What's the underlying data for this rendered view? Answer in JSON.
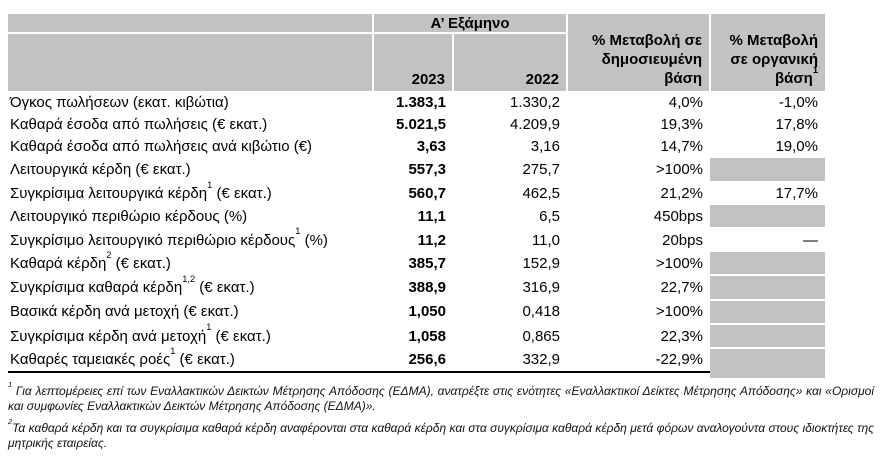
{
  "colors": {
    "header_bg": "#c2c2c2",
    "shaded_cell_bg": "#c2c2c2",
    "bottom_rule": "#000000",
    "cell_divider": "#ffffff"
  },
  "table": {
    "header": {
      "period_group": "Α’ Εξάμηνο",
      "col_2023": "2023",
      "col_2022": "2022",
      "col_published": "% Μεταβολή σε\nδημοσιευμένη\nβάση",
      "col_organic": "% Μεταβολή\nσε οργανική\nβάση[[1]]"
    },
    "rows": [
      {
        "label": "Όγκος πωλήσεων (εκατ. κιβώτια)",
        "y2023": "1.383,1",
        "y2022": "1.330,2",
        "published": "4,0%",
        "organic": "-1,0%",
        "organic_shaded": false
      },
      {
        "label": "Καθαρά έσοδα από πωλήσεις (€ εκατ.)",
        "y2023": "5.021,5",
        "y2022": "4.209,9",
        "published": "19,3%",
        "organic": "17,8%",
        "organic_shaded": false
      },
      {
        "label": "Καθαρά έσοδα από πωλήσεις ανά κιβώτιο (€)",
        "y2023": "3,63",
        "y2022": "3,16",
        "published": "14,7%",
        "organic": "19,0%",
        "organic_shaded": false
      },
      {
        "label": "Λειτουργικά κέρδη (€ εκατ.)",
        "y2023": "557,3",
        "y2022": "275,7",
        "published": ">100%",
        "organic": "",
        "organic_shaded": true
      },
      {
        "label": "Συγκρίσιμα λειτουργικά κέρδη[[1]] (€ εκατ.)",
        "y2023": "560,7",
        "y2022": "462,5",
        "published": "21,2%",
        "organic": "17,7%",
        "organic_shaded": false
      },
      {
        "label": "Λειτουργικό περιθώριο κέρδους (%)",
        "y2023": "11,1",
        "y2022": "6,5",
        "published": "450bps",
        "organic": "",
        "organic_shaded": true
      },
      {
        "label": "Συγκρίσιμο λειτουργικό περιθώριο κέρδους[[1]] (%)",
        "y2023": "11,2",
        "y2022": "11,0",
        "published": "20bps",
        "organic": "—",
        "organic_shaded": false
      },
      {
        "label": "Καθαρά κέρδη[[2]] (€ εκατ.)",
        "y2023": "385,7",
        "y2022": "152,9",
        "published": ">100%",
        "organic": "",
        "organic_shaded": true
      },
      {
        "label": "Συγκρίσιμα καθαρά κέρδη[[1,2]] (€ εκατ.)",
        "y2023": "388,9",
        "y2022": "316,9",
        "published": "22,7%",
        "organic": "",
        "organic_shaded": true
      },
      {
        "label": "Βασικά κέρδη ανά μετοχή (€ εκατ.)",
        "y2023": "1,050",
        "y2022": "0,418",
        "published": ">100%",
        "organic": "",
        "organic_shaded": true
      },
      {
        "label": "Συγκρίσιμα κέρδη ανά μετοχή[[1]] (€ εκατ.)",
        "y2023": "1,058",
        "y2022": "0,865",
        "published": "22,3%",
        "organic": "",
        "organic_shaded": true
      },
      {
        "label": "Καθαρές ταμειακές ροές[[1]] (€ εκατ.)",
        "y2023": "256,6",
        "y2022": "332,9",
        "published": "-22,9%",
        "organic": "",
        "organic_shaded": true
      }
    ]
  },
  "footnotes": [
    "[[1]] Για λεπτομέρειες επί των Εναλλακτικών Δεικτών Μέτρησης Απόδοσης (ΕΔΜΑ), ανατρέξτε στις ενότητες «Εναλλακτικοί Δείκτες Μέτρησης Απόδοσης» και «Ορισμοί και συμφωνίες Εναλλακτικών Δεικτών Μέτρησης Απόδοσης (ΕΔΜΑ)».",
    "[[2]]Τα καθαρά κέρδη και τα συγκρίσιμα καθαρά κέρδη αναφέρονται στα καθαρά κέρδη και στα συγκρίσιμα καθαρά κέρδη μετά φόρων αναλογούντα στους ιδιοκτήτες της μητρικής εταιρείας."
  ]
}
